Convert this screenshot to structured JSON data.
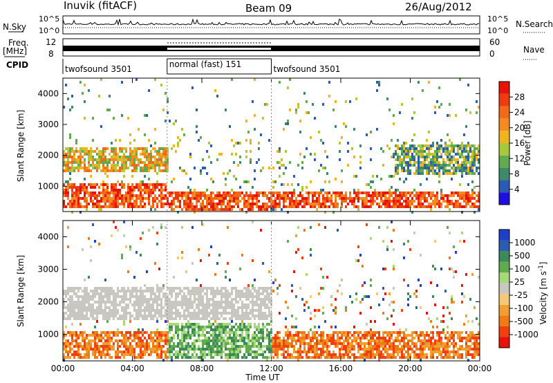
{
  "header": {
    "station": "Inuvik (fitACF)",
    "beam": "Beam 09",
    "date": "26/Aug/2012"
  },
  "strip_labels": {
    "nsky": "N.Sky",
    "freq_line1": "Freq.",
    "freq_line2": "[MHz]",
    "cpid": "CPID",
    "nsearch": "N.Search",
    "nave": "Nave"
  },
  "noise_axis": {
    "left_top": "10^5",
    "left_bottom": "10^0",
    "right_top": "10^5",
    "right_bottom": "10^0"
  },
  "freq_axis": {
    "left_ticks": [
      "12",
      "8"
    ],
    "right_ticks": [
      "60",
      "0"
    ]
  },
  "cpid_segments": [
    {
      "label": "twofsound 3501",
      "start_h": 0,
      "end_h": 6
    },
    {
      "label": "normal (fast) 151",
      "start_h": 6,
      "end_h": 12
    },
    {
      "label": "twofsound 3501",
      "start_h": 12,
      "end_h": 24
    }
  ],
  "chart_data": [
    {
      "type": "heatmap",
      "panel": "power",
      "xlabel": "",
      "ylabel": "Slant Range [km]",
      "x_range_hours": [
        0,
        24
      ],
      "ylim": [
        180,
        4500
      ],
      "yticks": [
        "1000",
        "2000",
        "3000",
        "4000"
      ],
      "colorbar": {
        "label": "Power [dB]",
        "tick_labels": [
          "28",
          "24",
          "20",
          "16",
          "12",
          "8",
          "4"
        ],
        "colors": [
          "#1e0fe0",
          "#2a5cb4",
          "#3d8a6a",
          "#5fab4e",
          "#a8c83a",
          "#f0b41e",
          "#f58a1e",
          "#f06a1a",
          "#f03a10",
          "#e81208"
        ]
      },
      "regions": [
        {
          "hours": [
            0,
            6
          ],
          "range_km": [
            300,
            1100
          ],
          "level": "high"
        },
        {
          "hours": [
            6,
            12
          ],
          "range_km": [
            250,
            900
          ],
          "level": "high"
        },
        {
          "hours": [
            12,
            24
          ],
          "range_km": [
            300,
            900
          ],
          "level": "high"
        },
        {
          "hours": [
            0,
            6
          ],
          "range_km": [
            1500,
            2300
          ],
          "level": "medium"
        },
        {
          "hours": [
            19,
            24
          ],
          "range_km": [
            1400,
            2400
          ],
          "level": "low"
        }
      ]
    },
    {
      "type": "heatmap",
      "panel": "velocity",
      "xlabel": "Time UT",
      "ylabel": "Slant Range [km]",
      "x_range_hours": [
        0,
        24
      ],
      "ylim": [
        180,
        4500
      ],
      "yticks": [
        "1000",
        "2000",
        "3000",
        "4000"
      ],
      "xticks": [
        "00:00",
        "04:00",
        "08:00",
        "12:00",
        "16:00",
        "20:00",
        "00:00"
      ],
      "colorbar": {
        "label": "Velocity [m s^-1]",
        "tick_labels": [
          "1000",
          "500",
          "100",
          "25",
          "-25",
          "-100",
          "-500",
          "-1000"
        ],
        "colors": [
          "#e81208",
          "#f04010",
          "#f07a14",
          "#f0a030",
          "#f5c878",
          "#c8c8c0",
          "#a8d878",
          "#5fab4e",
          "#3a8a5a",
          "#2a5cb4",
          "#1e3fc8"
        ]
      },
      "regions": [
        {
          "hours": [
            0,
            6
          ],
          "range_km": [
            300,
            1100
          ],
          "level": "away (orange)"
        },
        {
          "hours": [
            0,
            12
          ],
          "range_km": [
            1500,
            2500
          ],
          "level": "near zero (grey)"
        },
        {
          "hours": [
            6,
            12
          ],
          "range_km": [
            300,
            1400
          ],
          "level": "toward (green)"
        },
        {
          "hours": [
            12,
            24
          ],
          "range_km": [
            300,
            1100
          ],
          "level": "away (orange)"
        }
      ]
    }
  ]
}
